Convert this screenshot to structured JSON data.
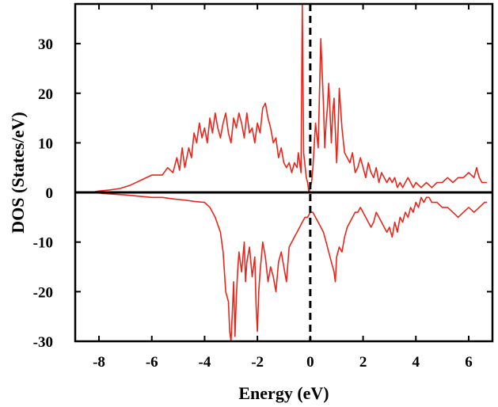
{
  "chart_data": {
    "type": "line",
    "xlabel": "Energy (eV)",
    "ylabel": "DOS (States/eV)",
    "xlim": [
      -8.9,
      6.9
    ],
    "ylim": [
      -30,
      38
    ],
    "x_ticks": [
      -8,
      -6,
      -4,
      -2,
      0,
      2,
      4,
      6
    ],
    "y_ticks": [
      -30,
      -20,
      -10,
      0,
      10,
      20,
      30
    ],
    "x_tick_labels": [
      "-8",
      "-6",
      "-4",
      "-2",
      "0",
      "2",
      "4",
      "6"
    ],
    "y_tick_labels": [
      "-30",
      "-20",
      "-10",
      "0",
      "10",
      "20",
      "30"
    ],
    "grid": false,
    "legend": "none",
    "series_color": "#e8261c",
    "fermi_level": {
      "x": 0,
      "style": "dashed",
      "color": "#000000"
    },
    "zero_line": {
      "y": 0,
      "color": "#000000"
    },
    "series": [
      {
        "direction": "up",
        "x": [
          -8.3,
          -8.0,
          -7.6,
          -7.2,
          -6.8,
          -6.4,
          -6.0,
          -5.6,
          -5.4,
          -5.2,
          -5.05,
          -4.95,
          -4.85,
          -4.75,
          -4.6,
          -4.5,
          -4.4,
          -4.3,
          -4.2,
          -4.1,
          -4.0,
          -3.9,
          -3.8,
          -3.7,
          -3.6,
          -3.5,
          -3.4,
          -3.3,
          -3.2,
          -3.1,
          -3.0,
          -2.9,
          -2.8,
          -2.7,
          -2.6,
          -2.5,
          -2.4,
          -2.3,
          -2.2,
          -2.1,
          -2.0,
          -1.9,
          -1.8,
          -1.7,
          -1.6,
          -1.5,
          -1.4,
          -1.3,
          -1.2,
          -1.1,
          -1.0,
          -0.9,
          -0.8,
          -0.7,
          -0.6,
          -0.5,
          -0.45,
          -0.35,
          -0.3,
          -0.25,
          -0.15,
          -0.1,
          -0.05,
          0.05,
          0.1,
          0.2,
          0.3,
          0.35,
          0.4,
          0.5,
          0.55,
          0.6,
          0.65,
          0.7,
          0.8,
          0.85,
          0.9,
          1.0,
          1.05,
          1.1,
          1.2,
          1.3,
          1.4,
          1.5,
          1.6,
          1.7,
          1.8,
          1.9,
          2.0,
          2.1,
          2.2,
          2.3,
          2.4,
          2.5,
          2.6,
          2.7,
          2.8,
          2.9,
          3.0,
          3.1,
          3.2,
          3.3,
          3.4,
          3.5,
          3.6,
          3.7,
          3.8,
          3.9,
          4.0,
          4.2,
          4.4,
          4.6,
          4.8,
          5.0,
          5.2,
          5.4,
          5.6,
          5.8,
          6.0,
          6.2,
          6.3,
          6.4,
          6.5,
          6.7
        ],
        "y": [
          0,
          0.3,
          0.5,
          0.8,
          1.5,
          2.5,
          3.5,
          3.5,
          5,
          4,
          7,
          4.5,
          9,
          5,
          9,
          7,
          12,
          10,
          14,
          11,
          13,
          10,
          15,
          12,
          16,
          13,
          11,
          14,
          16,
          12,
          10,
          15,
          13,
          16,
          14,
          11,
          16,
          12,
          13,
          10,
          14,
          12,
          17,
          18,
          15,
          13,
          10,
          11,
          7,
          9,
          6,
          5,
          6,
          4,
          6,
          5,
          8,
          4,
          38,
          8,
          3,
          2,
          0,
          2,
          5,
          14,
          9,
          20,
          31,
          18,
          9,
          14,
          17,
          22,
          10,
          16,
          19,
          6,
          12,
          21,
          13,
          8,
          7,
          6,
          8,
          4,
          5,
          7,
          5,
          3,
          6,
          4,
          3,
          5,
          2,
          4,
          3,
          2,
          3,
          2,
          3,
          1,
          2,
          1,
          2,
          3,
          2,
          1,
          2,
          1,
          2,
          1,
          2,
          2,
          3,
          2,
          3,
          3,
          4,
          3,
          5,
          3,
          2,
          2
        ]
      },
      {
        "direction": "down",
        "x": [
          -8.3,
          -7.6,
          -7.0,
          -6.4,
          -6.0,
          -5.6,
          -5.2,
          -4.8,
          -4.4,
          -4.0,
          -3.8,
          -3.6,
          -3.4,
          -3.3,
          -3.2,
          -3.1,
          -3.05,
          -3.0,
          -2.95,
          -2.9,
          -2.85,
          -2.8,
          -2.75,
          -2.7,
          -2.6,
          -2.5,
          -2.45,
          -2.4,
          -2.3,
          -2.2,
          -2.1,
          -2.05,
          -2.0,
          -1.95,
          -1.9,
          -1.8,
          -1.7,
          -1.6,
          -1.5,
          -1.4,
          -1.3,
          -1.2,
          -1.1,
          -1.0,
          -0.9,
          -0.8,
          -0.7,
          -0.6,
          -0.5,
          -0.4,
          -0.3,
          -0.2,
          -0.1,
          0.0,
          0.1,
          0.2,
          0.3,
          0.4,
          0.5,
          0.6,
          0.7,
          0.8,
          0.9,
          0.95,
          1.0,
          1.1,
          1.2,
          1.3,
          1.4,
          1.5,
          1.6,
          1.7,
          1.8,
          1.9,
          2.0,
          2.1,
          2.2,
          2.3,
          2.4,
          2.5,
          2.6,
          2.7,
          2.8,
          2.9,
          3.0,
          3.1,
          3.2,
          3.3,
          3.4,
          3.5,
          3.6,
          3.7,
          3.8,
          3.9,
          4.0,
          4.1,
          4.2,
          4.3,
          4.4,
          4.5,
          4.6,
          4.8,
          5.0,
          5.2,
          5.4,
          5.6,
          5.8,
          6.0,
          6.2,
          6.4,
          6.6,
          6.7
        ],
        "y": [
          0,
          -0.3,
          -0.5,
          -0.8,
          -1,
          -1,
          -1.3,
          -1.5,
          -1.8,
          -2,
          -3,
          -5,
          -8,
          -12,
          -20,
          -22,
          -28,
          -30,
          -24,
          -18,
          -29,
          -21,
          -16,
          -12,
          -16,
          -10,
          -18,
          -14,
          -11,
          -17,
          -13,
          -23,
          -28,
          -20,
          -16,
          -10,
          -13,
          -18,
          -15,
          -17,
          -20,
          -14,
          -12,
          -15,
          -18,
          -11,
          -10,
          -9,
          -8,
          -7,
          -6,
          -5,
          -5,
          -4,
          -4,
          -5,
          -6,
          -7,
          -8,
          -10,
          -12,
          -14,
          -16,
          -18,
          -13,
          -11,
          -12,
          -9,
          -7,
          -6,
          -5,
          -4,
          -4,
          -3,
          -4,
          -5,
          -6,
          -7,
          -6,
          -4,
          -5,
          -6,
          -7,
          -8,
          -7,
          -9,
          -6,
          -8,
          -5,
          -6,
          -4,
          -5,
          -3,
          -4,
          -2,
          -3,
          -1,
          -2,
          -1,
          -1,
          -2,
          -2,
          -3,
          -3,
          -4,
          -5,
          -4,
          -3,
          -4,
          -3,
          -2,
          -2
        ]
      }
    ]
  }
}
